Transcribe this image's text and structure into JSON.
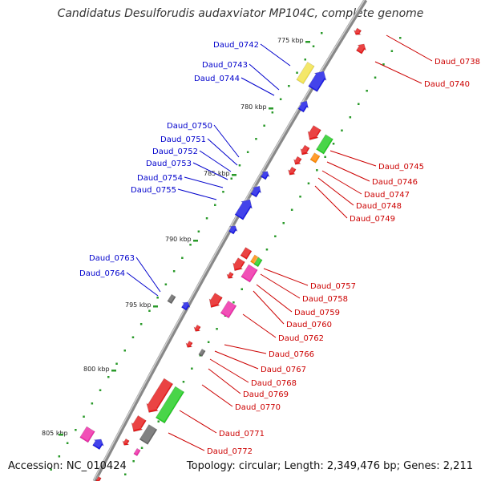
{
  "title": "Candidatus Desulforudis audaxviator MP104C, complete genome",
  "footer": {
    "accession": "Accession: NC_010424",
    "summary": "Topology: circular; Length: 2,349,476 bp; Genes: 2,211"
  },
  "colors": {
    "forward_label": "#0000cc",
    "reverse_label": "#cc0000",
    "backbone": "#999999",
    "ticks": "#2a9a2a"
  },
  "kbp_labels": [
    "775 kbp",
    "780 kbp",
    "785 kbp",
    "790 kbp",
    "795 kbp",
    "800 kbp",
    "805 kbp"
  ],
  "forward_genes": [
    "Daud_0742",
    "Daud_0743",
    "Daud_0744",
    "Daud_0750",
    "Daud_0751",
    "Daud_0752",
    "Daud_0753",
    "Daud_0754",
    "Daud_0755",
    "Daud_0763",
    "Daud_0764"
  ],
  "reverse_genes": [
    "Daud_0738",
    "Daud_0740",
    "Daud_0745",
    "Daud_0746",
    "Daud_0747",
    "Daud_0748",
    "Daud_0749",
    "Daud_0757",
    "Daud_0758",
    "Daud_0759",
    "Daud_0760",
    "Daud_0762",
    "Daud_0766",
    "Daud_0767",
    "Daud_0768",
    "Daud_0769",
    "Daud_0770",
    "Daud_0771",
    "Daud_0772"
  ]
}
